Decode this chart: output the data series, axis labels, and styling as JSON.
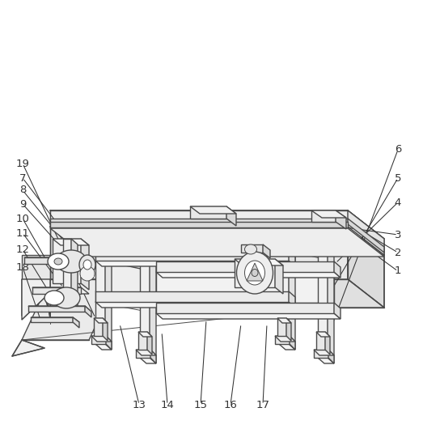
{
  "bg": "#ffffff",
  "lc": "#4a4a4a",
  "lw": 1.0,
  "tlw": 0.7,
  "ac": "#333333",
  "fs": 9.5
}
